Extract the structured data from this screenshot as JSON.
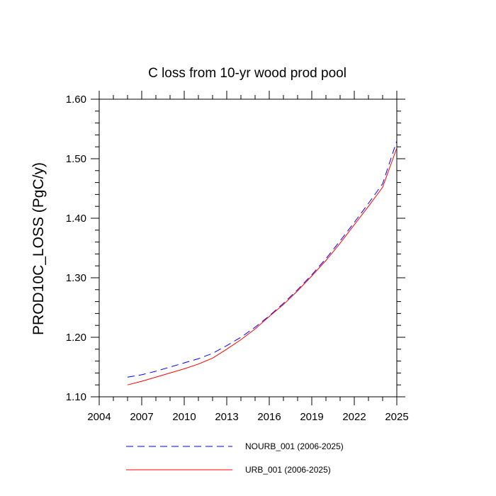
{
  "chart_data": {
    "type": "line",
    "title": "C loss from 10-yr wood prod pool",
    "xlabel": "",
    "ylabel": "PROD10C_LOSS  (PgC/y)",
    "xlim": [
      2004,
      2025
    ],
    "ylim": [
      1.1,
      1.6
    ],
    "xticks": [
      2004,
      2007,
      2010,
      2013,
      2016,
      2019,
      2022,
      2025
    ],
    "xtick_labels": [
      "2004",
      "2007",
      "2010",
      "2013",
      "2016",
      "2019",
      "2022",
      "2025"
    ],
    "yticks": [
      1.1,
      1.2,
      1.3,
      1.4,
      1.5,
      1.6
    ],
    "ytick_labels": [
      "1.10",
      "1.20",
      "1.30",
      "1.40",
      "1.50",
      "1.60"
    ],
    "x": [
      2006,
      2007,
      2008,
      2009,
      2010,
      2011,
      2012,
      2013,
      2014,
      2015,
      2016,
      2017,
      2018,
      2019,
      2020,
      2021,
      2022,
      2023,
      2024,
      2025
    ],
    "series": [
      {
        "name": "NOURB_001 (2006-2025)",
        "color": "#0000ff",
        "dash": "dashed",
        "values": [
          1.133,
          1.137,
          1.143,
          1.15,
          1.157,
          1.164,
          1.173,
          1.186,
          1.2,
          1.217,
          1.236,
          1.257,
          1.28,
          1.305,
          1.332,
          1.362,
          1.393,
          1.425,
          1.458,
          1.53
        ]
      },
      {
        "name": "URB_001 (2006-2025)",
        "color": "#ff0000",
        "dash": "solid",
        "values": [
          1.12,
          1.126,
          1.133,
          1.14,
          1.147,
          1.155,
          1.165,
          1.18,
          1.196,
          1.214,
          1.235,
          1.255,
          1.278,
          1.303,
          1.329,
          1.358,
          1.389,
          1.42,
          1.452,
          1.518
        ]
      }
    ],
    "legend_position": "bottom"
  }
}
